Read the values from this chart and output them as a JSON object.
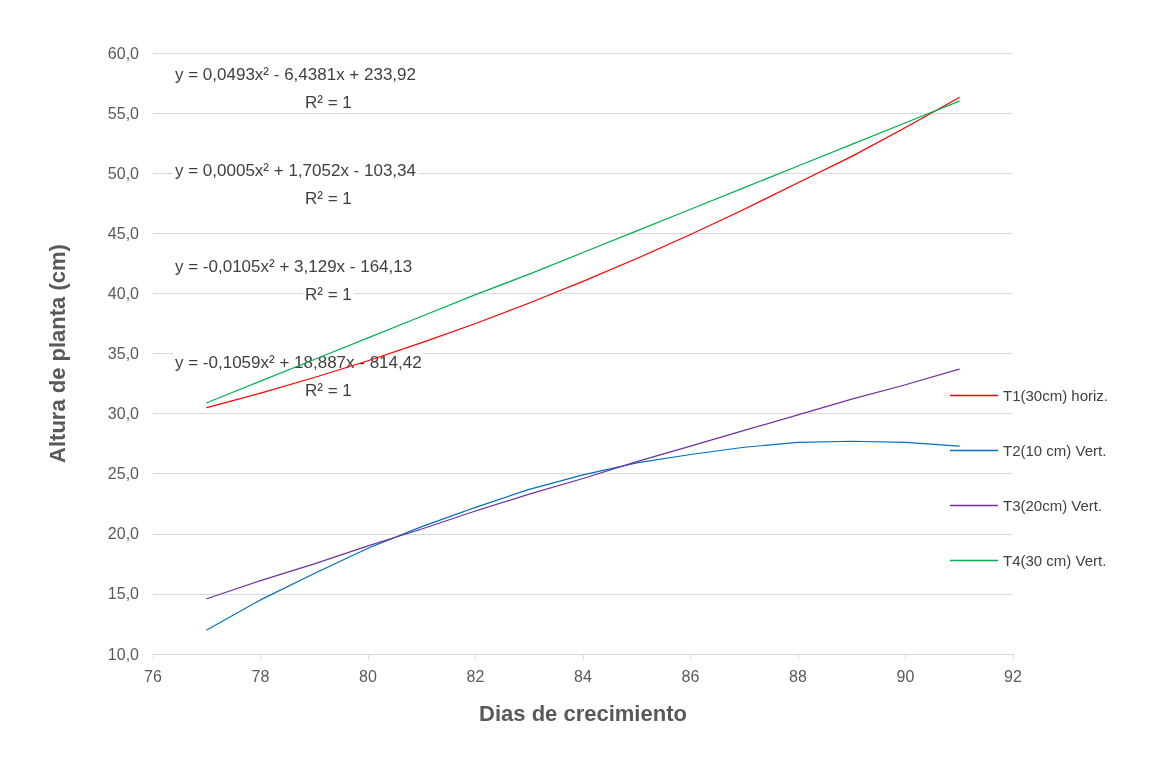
{
  "chart_data": {
    "type": "line",
    "xlabel": "Dias de crecimiento",
    "ylabel": "Altura de planta (cm)",
    "x": [
      77,
      78,
      79,
      80,
      81,
      82,
      83,
      84,
      85,
      86,
      87,
      88,
      89,
      90,
      91
    ],
    "series": [
      {
        "name": "T1(30cm) horiz.",
        "color": "#ff0000",
        "values": [
          30.5,
          31.7,
          33.0,
          34.4,
          35.9,
          37.5,
          39.2,
          41.0,
          42.9,
          44.9,
          47.0,
          49.2,
          51.4,
          53.8,
          56.3
        ]
      },
      {
        "name": "T2(10 cm) Vert.",
        "color": "#0070c0",
        "values": [
          12.0,
          14.5,
          16.7,
          18.8,
          20.6,
          22.2,
          23.7,
          24.9,
          25.9,
          26.6,
          27.2,
          27.6,
          27.7,
          27.6,
          27.3
        ]
      },
      {
        "name": "T3(20cm) Vert.",
        "color": "#7030a0",
        "values": [
          14.6,
          16.1,
          17.5,
          19.0,
          20.4,
          21.9,
          23.3,
          24.6,
          26.0,
          27.3,
          28.6,
          29.9,
          31.2,
          32.4,
          33.7
        ]
      },
      {
        "name": "T4(30 cm) Vert.",
        "color": "#00b050",
        "values": [
          30.9,
          32.7,
          34.5,
          36.3,
          38.1,
          39.9,
          41.6,
          43.4,
          45.2,
          47.0,
          48.8,
          50.6,
          52.4,
          54.2,
          56.0
        ]
      }
    ],
    "xlim": [
      76,
      92
    ],
    "xticks": [
      76,
      78,
      80,
      82,
      84,
      86,
      88,
      90,
      92
    ],
    "ylim": [
      10,
      60
    ],
    "yticks": [
      {
        "value": 10,
        "label": "10,0"
      },
      {
        "value": 15,
        "label": "15,0"
      },
      {
        "value": 20,
        "label": "20,0"
      },
      {
        "value": 25,
        "label": "25,0"
      },
      {
        "value": 30,
        "label": "30,0"
      },
      {
        "value": 35,
        "label": "35,0"
      },
      {
        "value": 40,
        "label": "40,0"
      },
      {
        "value": 45,
        "label": "45,0"
      },
      {
        "value": 50,
        "label": "50,0"
      },
      {
        "value": 55,
        "label": "55,0"
      },
      {
        "value": 60,
        "label": "60,0"
      }
    ],
    "annotations": [
      "y = 0,0493x² - 6,4381x + 233,92",
      "R² = 1",
      "y = 0,0005x² + 1,7052x - 103,34",
      "R² = 1",
      "y = -0,0105x² + 3,129x - 164,13",
      "R² = 1",
      "y = -0,1059x² + 18,887x - 814,42",
      "R² = 1"
    ],
    "grid": "y",
    "legend": "right",
    "marker": "none",
    "line_style": "solid"
  }
}
